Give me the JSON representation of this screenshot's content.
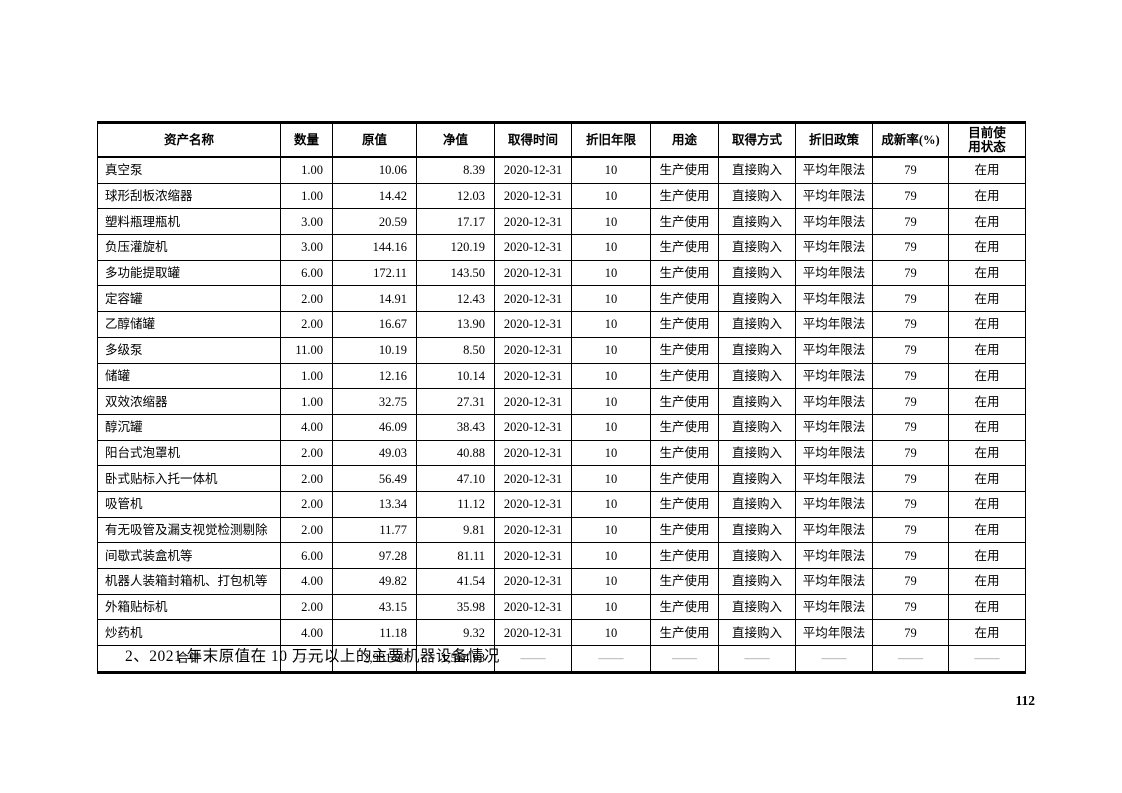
{
  "page": {
    "section_caption": "2、2021 年末原值在 10 万元以上的主要机器设备情况",
    "page_number": "112"
  },
  "table": {
    "columns": [
      "资产名称",
      "数量",
      "原值",
      "净值",
      "取得时间",
      "折旧年限",
      "用途",
      "取得方式",
      "折旧政策",
      "成新率(%)",
      "目前使用状态"
    ],
    "rows": [
      [
        "真空泵",
        "1.00",
        "10.06",
        "8.39",
        "2020-12-31",
        "10",
        "生产使用",
        "直接购入",
        "平均年限法",
        "79",
        "在用"
      ],
      [
        "球形刮板浓缩器",
        "1.00",
        "14.42",
        "12.03",
        "2020-12-31",
        "10",
        "生产使用",
        "直接购入",
        "平均年限法",
        "79",
        "在用"
      ],
      [
        "塑料瓶理瓶机",
        "3.00",
        "20.59",
        "17.17",
        "2020-12-31",
        "10",
        "生产使用",
        "直接购入",
        "平均年限法",
        "79",
        "在用"
      ],
      [
        "负压灌旋机",
        "3.00",
        "144.16",
        "120.19",
        "2020-12-31",
        "10",
        "生产使用",
        "直接购入",
        "平均年限法",
        "79",
        "在用"
      ],
      [
        "多功能提取罐",
        "6.00",
        "172.11",
        "143.50",
        "2020-12-31",
        "10",
        "生产使用",
        "直接购入",
        "平均年限法",
        "79",
        "在用"
      ],
      [
        "定容罐",
        "2.00",
        "14.91",
        "12.43",
        "2020-12-31",
        "10",
        "生产使用",
        "直接购入",
        "平均年限法",
        "79",
        "在用"
      ],
      [
        "乙醇储罐",
        "2.00",
        "16.67",
        "13.90",
        "2020-12-31",
        "10",
        "生产使用",
        "直接购入",
        "平均年限法",
        "79",
        "在用"
      ],
      [
        "多级泵",
        "11.00",
        "10.19",
        "8.50",
        "2020-12-31",
        "10",
        "生产使用",
        "直接购入",
        "平均年限法",
        "79",
        "在用"
      ],
      [
        "储罐",
        "1.00",
        "12.16",
        "10.14",
        "2020-12-31",
        "10",
        "生产使用",
        "直接购入",
        "平均年限法",
        "79",
        "在用"
      ],
      [
        "双效浓缩器",
        "1.00",
        "32.75",
        "27.31",
        "2020-12-31",
        "10",
        "生产使用",
        "直接购入",
        "平均年限法",
        "79",
        "在用"
      ],
      [
        "醇沉罐",
        "4.00",
        "46.09",
        "38.43",
        "2020-12-31",
        "10",
        "生产使用",
        "直接购入",
        "平均年限法",
        "79",
        "在用"
      ],
      [
        "阳台式泡罩机",
        "2.00",
        "49.03",
        "40.88",
        "2020-12-31",
        "10",
        "生产使用",
        "直接购入",
        "平均年限法",
        "79",
        "在用"
      ],
      [
        "卧式贴标入托一体机",
        "2.00",
        "56.49",
        "47.10",
        "2020-12-31",
        "10",
        "生产使用",
        "直接购入",
        "平均年限法",
        "79",
        "在用"
      ],
      [
        "吸管机",
        "2.00",
        "13.34",
        "11.12",
        "2020-12-31",
        "10",
        "生产使用",
        "直接购入",
        "平均年限法",
        "79",
        "在用"
      ],
      [
        "有无吸管及漏支视觉检测剔除",
        "2.00",
        "11.77",
        "9.81",
        "2020-12-31",
        "10",
        "生产使用",
        "直接购入",
        "平均年限法",
        "79",
        "在用"
      ],
      [
        "间歇式装盒机等",
        "6.00",
        "97.28",
        "81.11",
        "2020-12-31",
        "10",
        "生产使用",
        "直接购入",
        "平均年限法",
        "79",
        "在用"
      ],
      [
        "机器人装箱封箱机、打包机等",
        "4.00",
        "49.82",
        "41.54",
        "2020-12-31",
        "10",
        "生产使用",
        "直接购入",
        "平均年限法",
        "79",
        "在用"
      ],
      [
        "外箱贴标机",
        "2.00",
        "43.15",
        "35.98",
        "2020-12-31",
        "10",
        "生产使用",
        "直接购入",
        "平均年限法",
        "79",
        "在用"
      ],
      [
        "炒药机",
        "4.00",
        "11.18",
        "9.32",
        "2020-12-31",
        "10",
        "生产使用",
        "直接购入",
        "平均年限法",
        "79",
        "在用"
      ]
    ],
    "total_row": [
      "合计",
      "——",
      "2,931.80",
      "1,564.93",
      "——",
      "——",
      "——",
      "——",
      "——",
      "——",
      "——"
    ]
  }
}
